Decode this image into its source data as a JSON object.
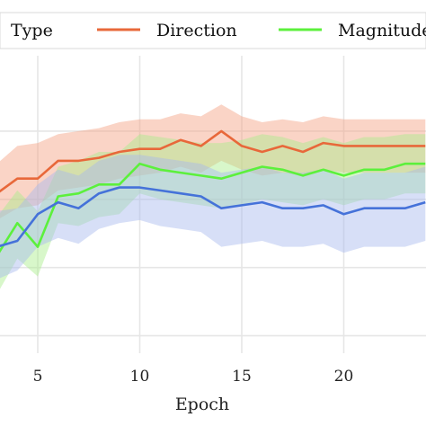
{
  "chart_data": {
    "type": "line",
    "xlabel": "Epoch",
    "ylabel": "",
    "xlim": [
      3,
      24
    ],
    "ylim": [
      0,
      1
    ],
    "x_ticks": [
      5,
      10,
      15,
      20
    ],
    "grid": true,
    "legend": {
      "title": "Type",
      "placement": "top",
      "entries": [
        "Direction",
        "Magnitude"
      ]
    },
    "x": [
      3,
      4,
      5,
      6,
      7,
      8,
      9,
      10,
      11,
      12,
      13,
      14,
      15,
      16,
      17,
      18,
      19,
      20,
      21,
      22,
      23,
      24
    ],
    "series": [
      {
        "name": "Direction",
        "color": "#e8683a",
        "band_color": "#f4a081",
        "values": [
          0.66,
          0.71,
          0.71,
          0.77,
          0.77,
          0.78,
          0.8,
          0.81,
          0.81,
          0.84,
          0.82,
          0.87,
          0.82,
          0.8,
          0.82,
          0.8,
          0.83,
          0.82,
          0.82,
          0.82,
          0.82,
          0.82
        ],
        "lower": [
          0.57,
          0.61,
          0.62,
          0.67,
          0.68,
          0.69,
          0.71,
          0.72,
          0.73,
          0.75,
          0.73,
          0.77,
          0.74,
          0.72,
          0.73,
          0.72,
          0.74,
          0.73,
          0.73,
          0.73,
          0.73,
          0.73
        ],
        "upper": [
          0.76,
          0.82,
          0.83,
          0.86,
          0.87,
          0.88,
          0.9,
          0.91,
          0.91,
          0.93,
          0.92,
          0.96,
          0.92,
          0.9,
          0.91,
          0.9,
          0.92,
          0.91,
          0.91,
          0.91,
          0.91,
          0.91
        ]
      },
      {
        "name": "Magnitude",
        "color": "#5cf03c",
        "band_color": "#a8ee8a",
        "values": [
          0.45,
          0.56,
          0.48,
          0.65,
          0.66,
          0.69,
          0.69,
          0.76,
          0.74,
          0.73,
          0.72,
          0.71,
          0.73,
          0.75,
          0.74,
          0.72,
          0.74,
          0.72,
          0.74,
          0.74,
          0.76,
          0.76
        ],
        "lower": [
          0.32,
          0.44,
          0.38,
          0.56,
          0.55,
          0.58,
          0.59,
          0.66,
          0.64,
          0.63,
          0.62,
          0.61,
          0.62,
          0.64,
          0.63,
          0.62,
          0.64,
          0.62,
          0.64,
          0.64,
          0.66,
          0.66
        ],
        "upper": [
          0.58,
          0.67,
          0.6,
          0.75,
          0.77,
          0.8,
          0.8,
          0.86,
          0.85,
          0.84,
          0.83,
          0.83,
          0.84,
          0.86,
          0.85,
          0.83,
          0.85,
          0.83,
          0.85,
          0.85,
          0.86,
          0.86
        ]
      },
      {
        "name": "",
        "color": "#4572d9",
        "band_color": "#a6b8ee",
        "values": [
          0.48,
          0.5,
          0.59,
          0.63,
          0.61,
          0.66,
          0.68,
          0.68,
          0.67,
          0.66,
          0.65,
          0.61,
          0.62,
          0.63,
          0.61,
          0.61,
          0.62,
          0.59,
          0.61,
          0.61,
          0.61,
          0.63
        ],
        "lower": [
          0.37,
          0.4,
          0.48,
          0.51,
          0.49,
          0.54,
          0.56,
          0.57,
          0.55,
          0.54,
          0.53,
          0.48,
          0.49,
          0.5,
          0.48,
          0.48,
          0.49,
          0.46,
          0.48,
          0.48,
          0.48,
          0.5
        ],
        "upper": [
          0.6,
          0.61,
          0.69,
          0.74,
          0.72,
          0.77,
          0.79,
          0.79,
          0.78,
          0.77,
          0.76,
          0.73,
          0.74,
          0.75,
          0.73,
          0.73,
          0.74,
          0.71,
          0.73,
          0.73,
          0.73,
          0.75
        ]
      }
    ]
  }
}
